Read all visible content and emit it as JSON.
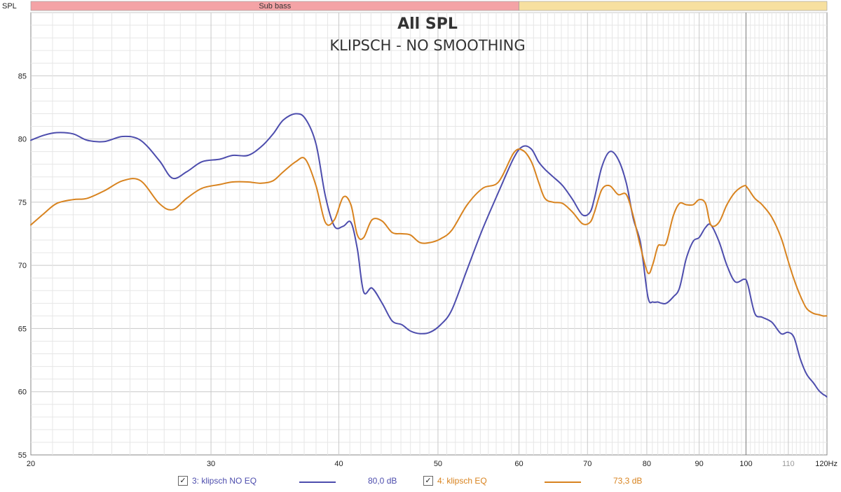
{
  "axis_name": "SPL",
  "x_unit": "Hz",
  "bands": [
    {
      "label": "Sub bass",
      "from": 20,
      "to": 60,
      "color": "#f4a3a6"
    },
    {
      "label": "",
      "from": 60,
      "to": 120,
      "color": "#f7e0a0"
    }
  ],
  "legend": {
    "items": [
      {
        "label": "3: klipsch NO EQ",
        "value": "80,0 dB",
        "color": "#4d4dad",
        "checked": true
      },
      {
        "label": "4: klipsch EQ",
        "value": "73,3 dB",
        "color": "#d8831f",
        "checked": true
      }
    ]
  },
  "chart_data": {
    "type": "line",
    "title": "All SPL",
    "subtitle": "KLIPSCH - NO SMOOTHING",
    "xlabel": "",
    "ylabel": "SPL",
    "xscale": "log",
    "xlim": [
      20,
      120
    ],
    "ylim": [
      55,
      90
    ],
    "yticks": [
      55,
      60,
      65,
      70,
      75,
      80,
      85
    ],
    "xticks": [
      {
        "v": 20,
        "label": "20"
      },
      {
        "v": 30,
        "label": "30"
      },
      {
        "v": 40,
        "label": "40"
      },
      {
        "v": 50,
        "label": "50"
      },
      {
        "v": 60,
        "label": "60"
      },
      {
        "v": 70,
        "label": "70"
      },
      {
        "v": 80,
        "label": "80"
      },
      {
        "v": 90,
        "label": "90"
      },
      {
        "v": 100,
        "label": "100"
      },
      {
        "v": 110,
        "label": "110",
        "minor": true
      },
      {
        "v": 120,
        "label": "120Hz"
      }
    ],
    "grid": true,
    "series": [
      {
        "name": "3: klipsch NO EQ",
        "color": "#4d4dad",
        "x": [
          20,
          20.6,
          21.2,
          22,
          22.7,
          23.6,
          24.6,
          25.6,
          26.7,
          27.5,
          28.4,
          29.4,
          30.6,
          31.5,
          32.6,
          33.6,
          34.5,
          35.3,
          36.3,
          37.1,
          38,
          38.8,
          39.6,
          40.4,
          41.1,
          41.7,
          42.3,
          43.1,
          44.1,
          45.1,
          46.1,
          47,
          48,
          49.1,
          50.3,
          51.6,
          53.4,
          55.3,
          57.3,
          59.3,
          60.5,
          61.7,
          62.7,
          63.6,
          64.8,
          66.2,
          67.7,
          69.2,
          70.4,
          71.1,
          72.3,
          73.6,
          75,
          76.4,
          77.6,
          78.9,
          80.2,
          81.1,
          82,
          82.7,
          83.6,
          84.9,
          86.1,
          87.4,
          88.8,
          90,
          91.3,
          92.4,
          94.1,
          95.8,
          97.6,
          99.6,
          100.4,
          102,
          103.7,
          106,
          108.2,
          109.9,
          111.4,
          113,
          114.6,
          116.4,
          117.8,
          118.9,
          119.5,
          119.9
        ],
        "y": [
          79.9,
          80.3,
          80.5,
          80.4,
          79.9,
          79.8,
          80.2,
          79.9,
          78.3,
          76.9,
          77.4,
          78.2,
          78.4,
          78.7,
          78.7,
          79.4,
          80.4,
          81.5,
          82,
          81.6,
          79.6,
          75.5,
          73.1,
          73.1,
          73.4,
          71.3,
          67.9,
          68.2,
          67,
          65.6,
          65.3,
          64.8,
          64.6,
          64.7,
          65.3,
          66.5,
          69.7,
          72.9,
          75.8,
          78.5,
          79.4,
          79.2,
          78.2,
          77.6,
          77,
          76.3,
          75.2,
          74,
          74.2,
          75.3,
          77.8,
          79,
          78.4,
          76.5,
          73.7,
          71.7,
          67.5,
          67.1,
          67.1,
          67,
          67,
          67.5,
          68.2,
          70.5,
          71.9,
          72.2,
          73,
          73.2,
          71.9,
          70,
          68.7,
          68.9,
          68.5,
          66.2,
          65.9,
          65.5,
          64.6,
          64.7,
          64.3,
          62.6,
          61.4,
          60.7,
          60.1,
          59.8,
          59.7,
          59.6
        ]
      },
      {
        "name": "4: klipsch EQ",
        "color": "#d8831f",
        "x": [
          20,
          20.6,
          21.2,
          22,
          22.7,
          23.6,
          24.6,
          25.6,
          26.7,
          27.5,
          28.4,
          29.4,
          30.6,
          31.5,
          32.6,
          33.6,
          34.5,
          35.3,
          36.3,
          37.1,
          38,
          38.8,
          39.6,
          40.4,
          41.1,
          41.7,
          42.3,
          43.1,
          44.1,
          45.1,
          46.1,
          47,
          48,
          49.1,
          50.3,
          51.6,
          53.4,
          55.3,
          57.3,
          59.3,
          60.5,
          61.7,
          62.7,
          63.6,
          64.8,
          66.2,
          67.7,
          69.2,
          70.4,
          71.1,
          72.3,
          73.6,
          75,
          76.4,
          77.6,
          78.9,
          80.2,
          81.1,
          82,
          82.7,
          83.6,
          84.9,
          86.1,
          87.4,
          88.8,
          90,
          91.3,
          92.4,
          94.1,
          95.8,
          97.6,
          99.6,
          100.4,
          102,
          103.7,
          106,
          108.2,
          109.9,
          111.4,
          113,
          114.6,
          116.4,
          117.8,
          118.9,
          119.5,
          119.9
        ],
        "y": [
          73.2,
          74.1,
          74.9,
          75.2,
          75.3,
          75.9,
          76.7,
          76.7,
          74.9,
          74.4,
          75.3,
          76.1,
          76.4,
          76.6,
          76.6,
          76.5,
          76.7,
          77.4,
          78.2,
          78.4,
          76.3,
          73.4,
          73.6,
          75.4,
          74.8,
          72.4,
          72.2,
          73.6,
          73.5,
          72.6,
          72.5,
          72.4,
          71.8,
          71.8,
          72.1,
          72.8,
          74.8,
          76.1,
          76.6,
          78.9,
          79.1,
          78.2,
          76.6,
          75.3,
          75,
          74.9,
          74.2,
          73.3,
          73.4,
          74.2,
          76,
          76.3,
          75.6,
          75.6,
          73.9,
          71.4,
          69.4,
          70.1,
          71.5,
          71.6,
          71.8,
          73.9,
          74.9,
          74.8,
          74.8,
          75.2,
          74.9,
          73.2,
          73.4,
          74.8,
          75.8,
          76.3,
          76.1,
          75.3,
          74.8,
          73.8,
          72.2,
          70.4,
          68.9,
          67.6,
          66.6,
          66.2,
          66.1,
          66,
          66,
          66
        ]
      }
    ]
  }
}
